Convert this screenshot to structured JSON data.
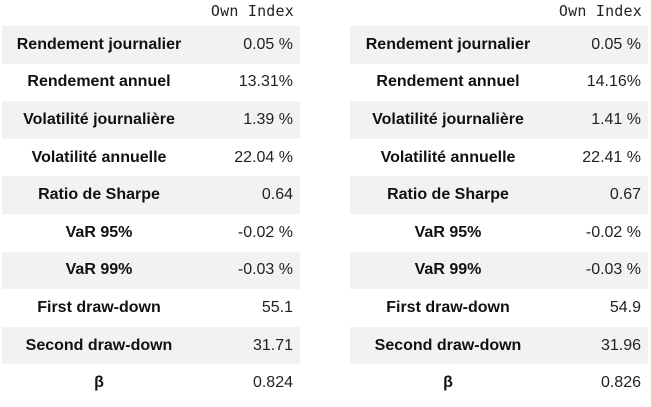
{
  "left_table": {
    "column_header": "Own Index",
    "rows": [
      {
        "label": "Rendement journalier",
        "value": "0.05 %"
      },
      {
        "label": "Rendement annuel",
        "value": "13.31%"
      },
      {
        "label": "Volatilité journalière",
        "value": "1.39 %"
      },
      {
        "label": "Volatilité annuelle",
        "value": "22.04 %"
      },
      {
        "label": "Ratio de Sharpe",
        "value": "0.64"
      },
      {
        "label": "VaR 95%",
        "value": "-0.02 %"
      },
      {
        "label": "VaR 99%",
        "value": "-0.03 %"
      },
      {
        "label": "First draw-down",
        "value": "55.1"
      },
      {
        "label": "Second draw-down",
        "value": "31.71"
      },
      {
        "label": "β",
        "value": "0.824"
      }
    ]
  },
  "right_table": {
    "column_header": "Own Index",
    "rows": [
      {
        "label": "Rendement journalier",
        "value": "0.05 %"
      },
      {
        "label": "Rendement annuel",
        "value": "14.16%"
      },
      {
        "label": "Volatilité journalière",
        "value": "1.41 %"
      },
      {
        "label": "Volatilité annuelle",
        "value": "22.41 %"
      },
      {
        "label": "Ratio de Sharpe",
        "value": "0.67"
      },
      {
        "label": "VaR 95%",
        "value": "-0.02 %"
      },
      {
        "label": "VaR 99%",
        "value": "-0.03 %"
      },
      {
        "label": "First draw-down",
        "value": "54.9"
      },
      {
        "label": "Second draw-down",
        "value": "31.96"
      },
      {
        "label": "β",
        "value": "0.826"
      }
    ]
  },
  "colors": {
    "stripe": "#f2f2f2",
    "background": "#ffffff"
  }
}
